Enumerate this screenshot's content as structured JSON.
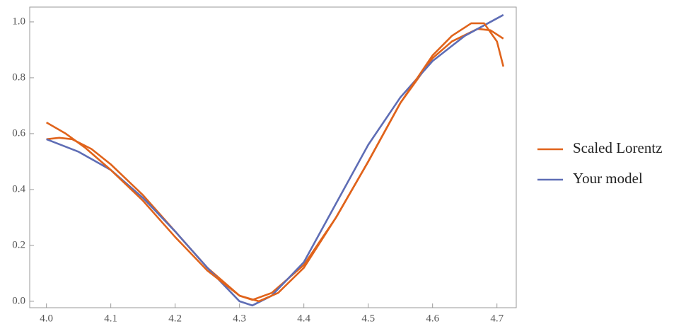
{
  "chart_data": {
    "type": "line",
    "xlim": [
      3.974,
      4.73
    ],
    "ylim": [
      -0.023,
      1.053
    ],
    "xticks": [
      {
        "value": 4.0,
        "label": "4.0"
      },
      4.1,
      4.2,
      4.3,
      4.4,
      4.5,
      4.6,
      4.7
    ],
    "yticks": [
      {
        "value": 0,
        "label": "0.0"
      },
      0.2,
      0.4,
      0.6,
      0.8,
      {
        "value": 1,
        "label": "1.0"
      }
    ],
    "legend": "right",
    "series": [
      {
        "name": "Scaled Lorentz",
        "color": "#e0631b",
        "x": [
          4.0,
          4.02,
          4.04,
          4.07,
          4.1,
          4.15,
          4.2,
          4.25,
          4.3,
          4.32,
          4.35,
          4.4,
          4.45,
          4.5,
          4.55,
          4.6,
          4.63,
          4.67,
          4.69,
          4.71
        ],
        "values": [
          0.58,
          0.585,
          0.58,
          0.545,
          0.49,
          0.38,
          0.25,
          0.12,
          0.02,
          0.005,
          0.03,
          0.13,
          0.3,
          0.5,
          0.71,
          0.87,
          0.93,
          0.975,
          0.97,
          0.94
        ]
      },
      {
        "name": "Your model",
        "color": "#5e6db5",
        "x": [
          4.0,
          4.05,
          4.1,
          4.15,
          4.2,
          4.25,
          4.3,
          4.32,
          4.35,
          4.4,
          4.45,
          4.5,
          4.55,
          4.6,
          4.65,
          4.71
        ],
        "values": [
          0.58,
          0.535,
          0.47,
          0.37,
          0.25,
          0.12,
          0.0,
          -0.015,
          0.02,
          0.14,
          0.35,
          0.56,
          0.73,
          0.86,
          0.95,
          1.025
        ]
      },
      {
        "color": "#e0631b",
        "x": [
          4.0,
          4.03,
          4.06,
          4.1,
          4.15,
          4.2,
          4.25,
          4.3,
          4.33,
          4.36,
          4.4,
          4.45,
          4.5,
          4.55,
          4.6,
          4.63,
          4.66,
          4.68,
          4.7,
          4.71
        ],
        "values": [
          0.64,
          0.6,
          0.55,
          0.47,
          0.36,
          0.23,
          0.11,
          0.02,
          0.0,
          0.03,
          0.12,
          0.3,
          0.5,
          0.71,
          0.88,
          0.95,
          0.995,
          0.995,
          0.93,
          0.84
        ]
      }
    ]
  }
}
